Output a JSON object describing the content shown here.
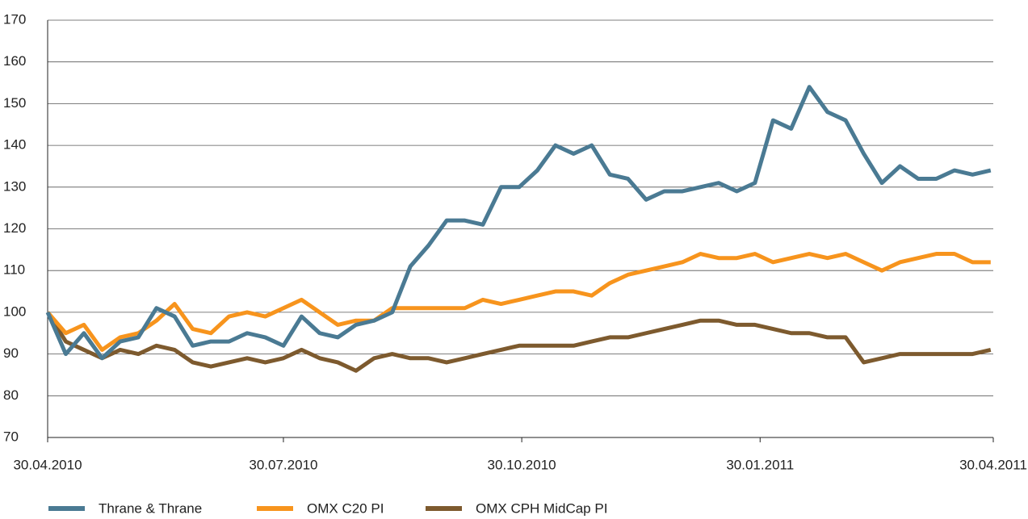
{
  "chart_data": {
    "type": "line",
    "x": [
      "30.04.2010",
      "07.05.2010",
      "14.05.2010",
      "21.05.2010",
      "28.05.2010",
      "04.06.2010",
      "11.06.2010",
      "18.06.2010",
      "25.06.2010",
      "02.07.2010",
      "09.07.2010",
      "16.07.2010",
      "23.07.2010",
      "30.07.2010",
      "06.08.2010",
      "13.08.2010",
      "20.08.2010",
      "27.08.2010",
      "03.09.2010",
      "10.09.2010",
      "17.09.2010",
      "24.09.2010",
      "01.10.2010",
      "08.10.2010",
      "15.10.2010",
      "22.10.2010",
      "29.10.2010",
      "05.11.2010",
      "12.11.2010",
      "19.11.2010",
      "26.11.2010",
      "03.12.2010",
      "10.12.2010",
      "17.12.2010",
      "24.12.2010",
      "31.12.2010",
      "07.01.2011",
      "14.01.2011",
      "21.01.2011",
      "28.01.2011",
      "04.02.2011",
      "11.02.2011",
      "18.02.2011",
      "25.02.2011",
      "04.03.2011",
      "11.03.2011",
      "18.03.2011",
      "25.03.2011",
      "01.04.2011",
      "08.04.2011",
      "15.04.2011",
      "22.04.2011",
      "29.04.2011"
    ],
    "series": [
      {
        "name": "Thrane & Thrane",
        "color": "#4a7a93",
        "values": [
          100,
          90,
          95,
          89,
          93,
          94,
          101,
          99,
          92,
          93,
          93,
          95,
          94,
          92,
          99,
          95,
          94,
          97,
          98,
          100,
          111,
          116,
          122,
          122,
          121,
          130,
          130,
          134,
          140,
          138,
          140,
          133,
          132,
          127,
          129,
          129,
          130,
          131,
          129,
          131,
          146,
          144,
          154,
          148,
          146,
          138,
          131,
          135,
          132,
          132,
          134,
          133,
          134
        ]
      },
      {
        "name": "OMX C20 PI",
        "color": "#f7941d",
        "values": [
          100,
          95,
          97,
          91,
          94,
          95,
          98,
          102,
          96,
          95,
          99,
          100,
          99,
          101,
          103,
          100,
          97,
          98,
          98,
          101,
          101,
          101,
          101,
          101,
          103,
          102,
          103,
          104,
          105,
          105,
          104,
          107,
          109,
          110,
          111,
          112,
          114,
          113,
          113,
          114,
          112,
          113,
          114,
          113,
          114,
          112,
          110,
          112,
          113,
          114,
          114,
          112,
          112
        ]
      },
      {
        "name": "OMX CPH MidCap PI",
        "color": "#7d5a2e",
        "values": [
          100,
          93,
          91,
          89,
          91,
          90,
          92,
          91,
          88,
          87,
          88,
          89,
          88,
          89,
          91,
          89,
          88,
          86,
          89,
          90,
          89,
          89,
          88,
          89,
          90,
          91,
          92,
          92,
          92,
          92,
          93,
          94,
          94,
          95,
          96,
          97,
          98,
          98,
          97,
          97,
          96,
          95,
          95,
          94,
          94,
          88,
          89,
          90,
          90,
          90,
          90,
          90,
          91
        ]
      }
    ],
    "xlim": [
      "30.04.2010",
      "30.04.2011"
    ],
    "xticks": [
      "30.04.2010",
      "30.07.2010",
      "30.10.2010",
      "30.01.2011",
      "30.04.2011"
    ],
    "ylim": [
      70,
      170
    ],
    "yticks": [
      70,
      80,
      90,
      100,
      110,
      120,
      130,
      140,
      150,
      160,
      170
    ],
    "grid": true
  }
}
